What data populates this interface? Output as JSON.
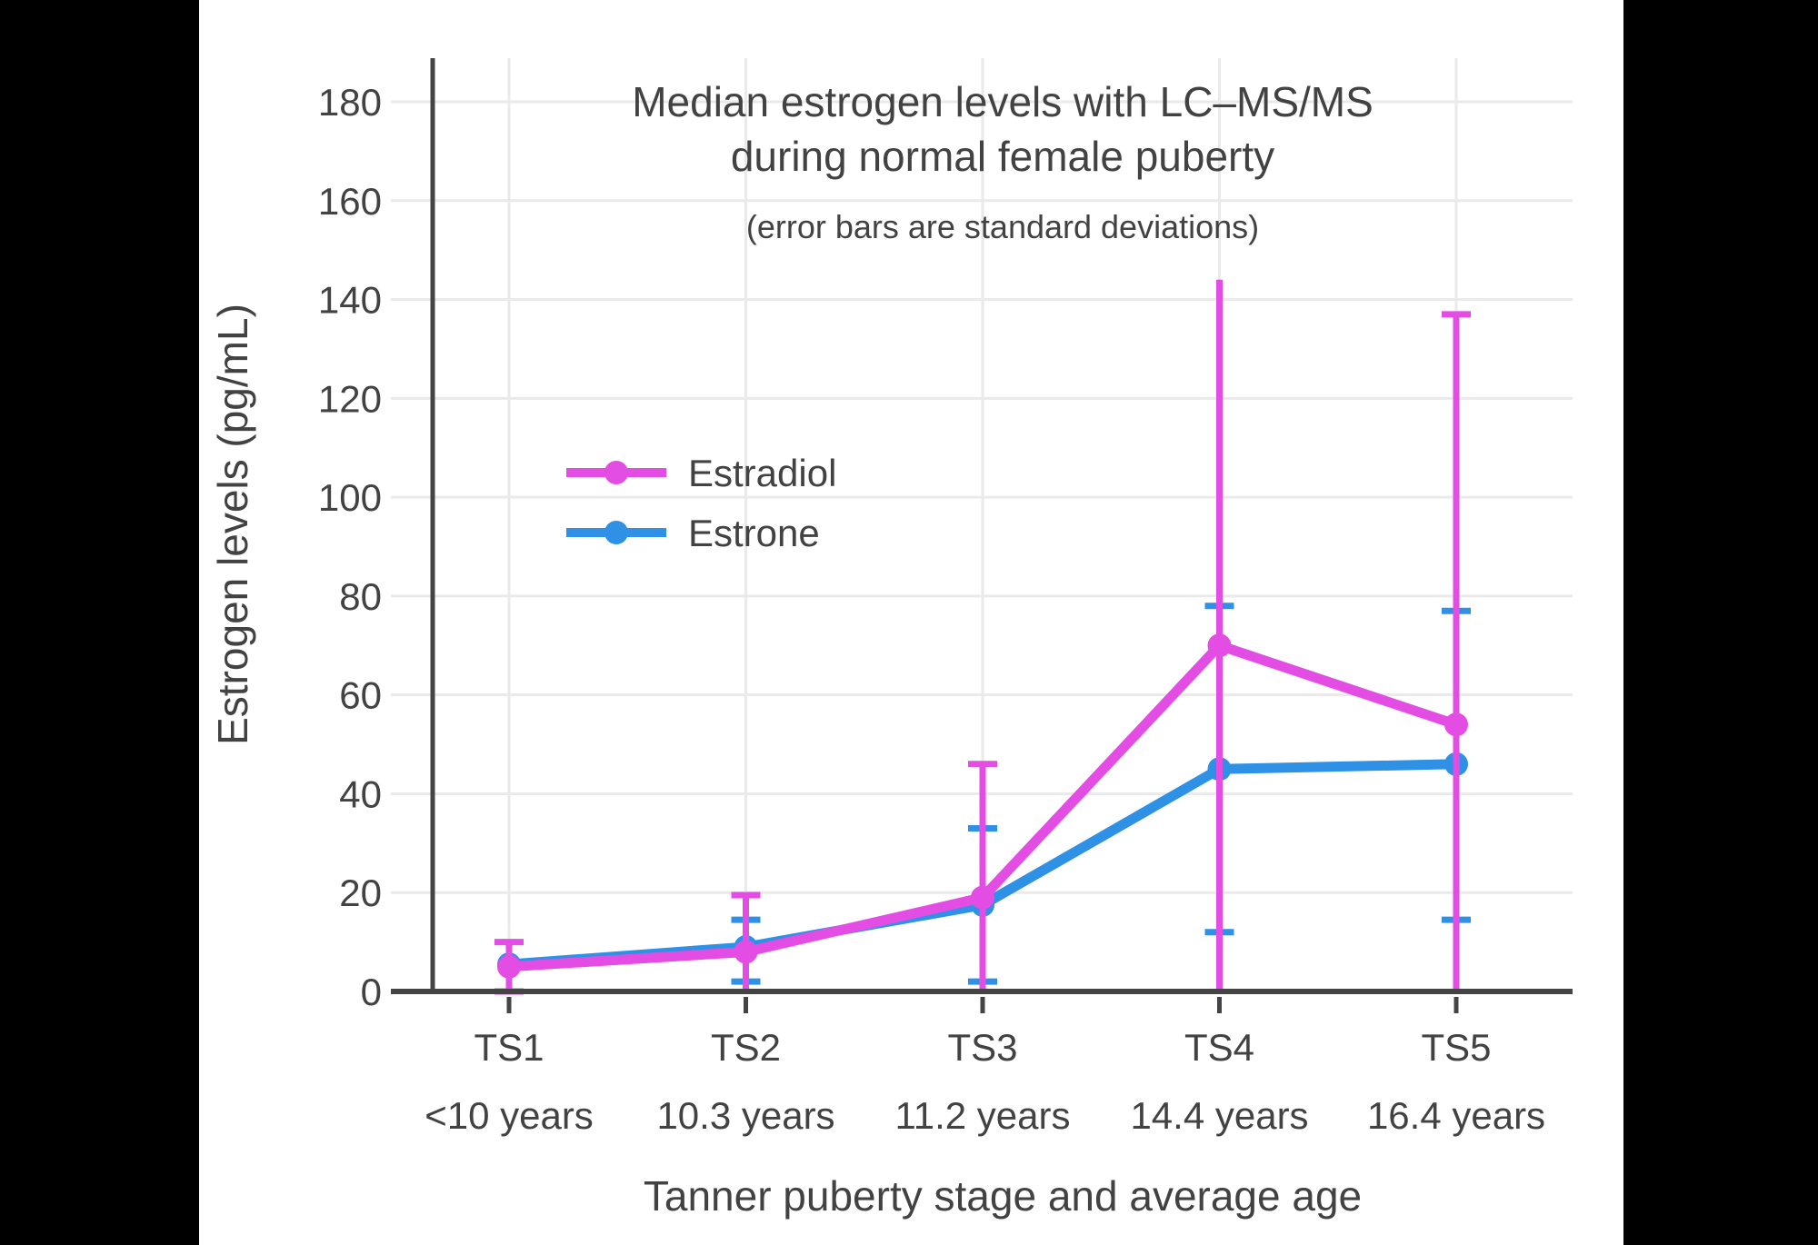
{
  "window": {
    "outer_background": "#000000",
    "canvas_background": "#FFFFFF"
  },
  "colors": {
    "text": "#424242",
    "grid": "#EAEAEA",
    "axis": "#444444",
    "estradiol": "#E44DE4",
    "estrone": "#2E91E5"
  },
  "chart_data": {
    "type": "line",
    "title": "Median estrogen levels with LC–MS/MS during normal female puberty",
    "title_lines": [
      "Median estrogen levels with LC–MS/MS",
      "during normal female puberty"
    ],
    "subtitle": "(error bars are standard deviations)",
    "xlabel": "Tanner puberty stage and average age",
    "ylabel": "Estrogen levels (pg/mL)",
    "legend_position": "inside upper-left",
    "grid": true,
    "ylim": [
      0,
      189
    ],
    "yticks": [
      0,
      20,
      40,
      60,
      80,
      100,
      120,
      140,
      160,
      180
    ],
    "categories": [
      {
        "stage": "TS1",
        "age": "<10 years"
      },
      {
        "stage": "TS2",
        "age": "10.3 years"
      },
      {
        "stage": "TS3",
        "age": "11.2 years"
      },
      {
        "stage": "TS4",
        "age": "14.4 years"
      },
      {
        "stage": "TS5",
        "age": "16.4 years"
      }
    ],
    "series": [
      {
        "name": "Estradiol",
        "color": "#E44DE4",
        "values": [
          5,
          8,
          19,
          70,
          54
        ],
        "error_upper": [
          10,
          19.5,
          46,
          144,
          137
        ],
        "error_lower": [
          0,
          0,
          0,
          0,
          0
        ],
        "upper_caps": [
          1,
          1,
          1,
          0,
          1
        ],
        "lower_caps": [
          1,
          0,
          0,
          0,
          0
        ]
      },
      {
        "name": "Estrone",
        "color": "#2E91E5",
        "values": [
          5.5,
          9,
          17.5,
          45,
          46
        ],
        "error_upper": [
          null,
          14.5,
          33,
          78,
          77
        ],
        "error_lower": [
          null,
          2,
          2,
          12,
          14.5
        ],
        "upper_caps": [
          0,
          1,
          1,
          1,
          1
        ],
        "lower_caps": [
          0,
          1,
          1,
          1,
          1
        ]
      }
    ]
  }
}
